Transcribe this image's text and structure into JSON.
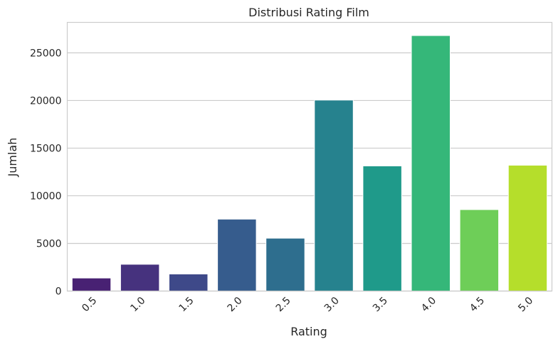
{
  "chart_data": {
    "type": "bar",
    "title": "Distribusi Rating Film",
    "xlabel": "Rating",
    "ylabel": "Jumlah",
    "categories": [
      "0.5",
      "1.0",
      "1.5",
      "2.0",
      "2.5",
      "3.0",
      "3.5",
      "4.0",
      "4.5",
      "5.0"
    ],
    "values": [
      1370,
      2811,
      1791,
      7551,
      5550,
      20047,
      13136,
      26818,
      8551,
      13211
    ],
    "ylim": [
      0,
      28200
    ],
    "yticks": [
      "0",
      "5000",
      "10000",
      "15000",
      "20000",
      "25000"
    ],
    "ytick_values": [
      0,
      5000,
      10000,
      15000,
      20000,
      25000
    ],
    "grid": "horizontal",
    "colors": [
      "#482173",
      "#46327e",
      "#3e4989",
      "#365c8d",
      "#2e6e8e",
      "#26828e",
      "#1f9a8a",
      "#35b779",
      "#6ece58",
      "#b5de2b"
    ]
  }
}
